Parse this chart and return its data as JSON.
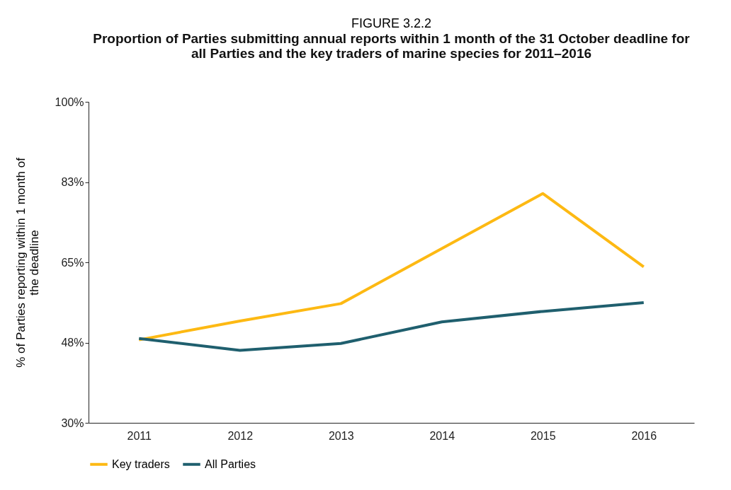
{
  "chart_data": {
    "type": "line",
    "title": "FIGURE 3.2.2",
    "subtitle": "Proportion of Parties submitting annual reports within 1 month of the 31 October deadline for all Parties and the key traders of marine species for 2011–2016",
    "ylabel": "% of Parties reporting within 1 month of the deadline",
    "categories": [
      "2011",
      "2012",
      "2013",
      "2014",
      "2015",
      "2016"
    ],
    "series": [
      {
        "name": "Key traders",
        "color": "#fdb913",
        "values": [
          48.1,
          52.2,
          56,
          68,
          80,
          64
        ]
      },
      {
        "name": "All Parties",
        "color": "#1f5f6e",
        "values": [
          48.4,
          45.8,
          47.3,
          52,
          54.3,
          56.2
        ]
      }
    ],
    "ylim": [
      30,
      100
    ],
    "yticks": [
      {
        "value": 30,
        "label": "30%"
      },
      {
        "value": 47.5,
        "label": "48%"
      },
      {
        "value": 65,
        "label": "65%"
      },
      {
        "value": 82.5,
        "label": "83%"
      },
      {
        "value": 100,
        "label": "100%"
      }
    ],
    "grid": false,
    "legend": "bottom",
    "line_style": "solid",
    "marker": "none"
  }
}
